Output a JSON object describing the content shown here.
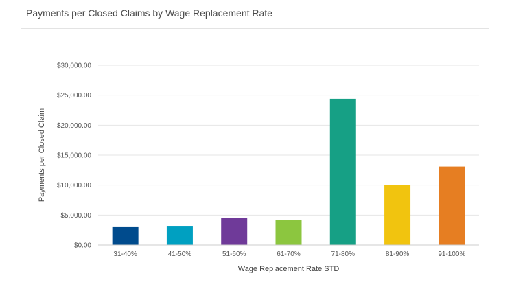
{
  "panel": {
    "title": "Payments per Closed Claims by Wage Replacement Rate"
  },
  "chart_data": {
    "type": "bar",
    "title": "",
    "xlabel": "Wage Replacement Rate STD",
    "ylabel": "Payments per Closed Claim",
    "categories": [
      "31-40%",
      "41-50%",
      "51-60%",
      "61-70%",
      "71-80%",
      "81-90%",
      "91-100%"
    ],
    "values": [
      3100,
      3200,
      4500,
      4200,
      24400,
      10000,
      13100
    ],
    "colors": [
      "#004b8d",
      "#00a0c1",
      "#6f3a99",
      "#8cc63f",
      "#16a085",
      "#f1c40f",
      "#e67e22"
    ],
    "ylim": [
      0,
      30000
    ],
    "yticks": [
      0,
      5000,
      10000,
      15000,
      20000,
      25000,
      30000
    ],
    "ytick_labels": [
      "$0.00",
      "$5,000.00",
      "$10,000.00",
      "$15,000.00",
      "$20,000.00",
      "$25,000.00",
      "$30,000.00"
    ],
    "grid": true,
    "gridline_color": "#e6e6e6",
    "legend": "none"
  }
}
